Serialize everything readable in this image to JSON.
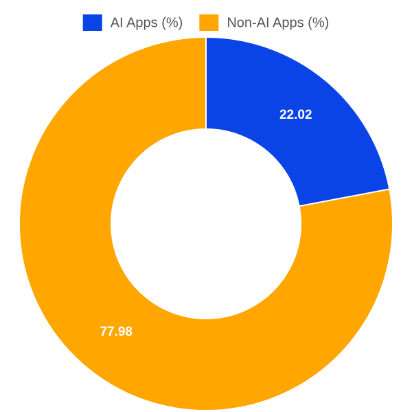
{
  "chart_data": {
    "type": "donut",
    "categories": [
      "AI Apps (%)",
      "Non-AI Apps (%)"
    ],
    "values": [
      22.02,
      77.98
    ],
    "colors": [
      "#0a43e6",
      "#ffa600"
    ],
    "legend": "top"
  }
}
